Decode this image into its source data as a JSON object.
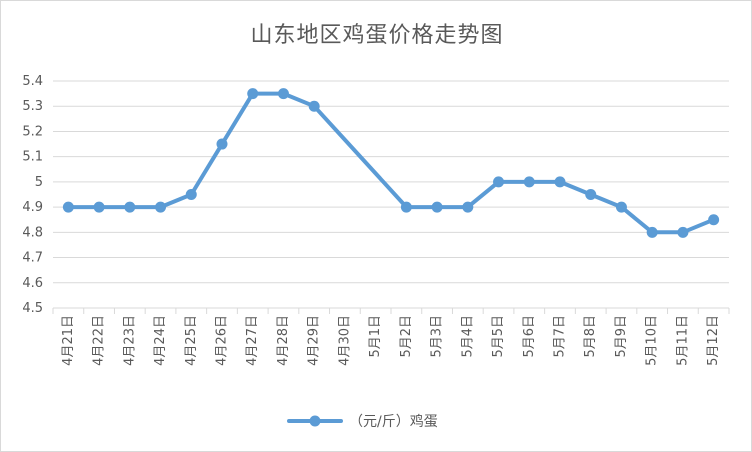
{
  "chart_data": {
    "type": "line",
    "title": "山东地区鸡蛋价格走势图",
    "categories": [
      "4月21日",
      "4月22日",
      "4月23日",
      "4月24日",
      "4月25日",
      "4月26日",
      "4月27日",
      "4月28日",
      "4月29日",
      "4月30日",
      "5月1日",
      "5月2日",
      "5月3日",
      "5月4日",
      "5月5日",
      "5月6日",
      "5月7日",
      "5月8日",
      "5月9日",
      "5月10日",
      "5月11日",
      "5月12日"
    ],
    "series": [
      {
        "name": "（元/斤）鸡蛋",
        "color": "#5b9bd5",
        "values": [
          4.9,
          4.9,
          4.9,
          4.9,
          4.95,
          5.15,
          5.35,
          5.35,
          5.3,
          null,
          null,
          4.9,
          4.9,
          4.9,
          5.0,
          5.0,
          5.0,
          4.95,
          4.9,
          4.8,
          4.8,
          4.85
        ]
      }
    ],
    "ylim": [
      4.5,
      5.4
    ],
    "yticks": [
      "4.5",
      "4.6",
      "4.7",
      "4.8",
      "4.9",
      "5",
      "5.1",
      "5.2",
      "5.3",
      "5.4"
    ],
    "xlabel": "",
    "ylabel": "",
    "grid": true,
    "legend_position": "bottom",
    "connect_gaps": true
  }
}
